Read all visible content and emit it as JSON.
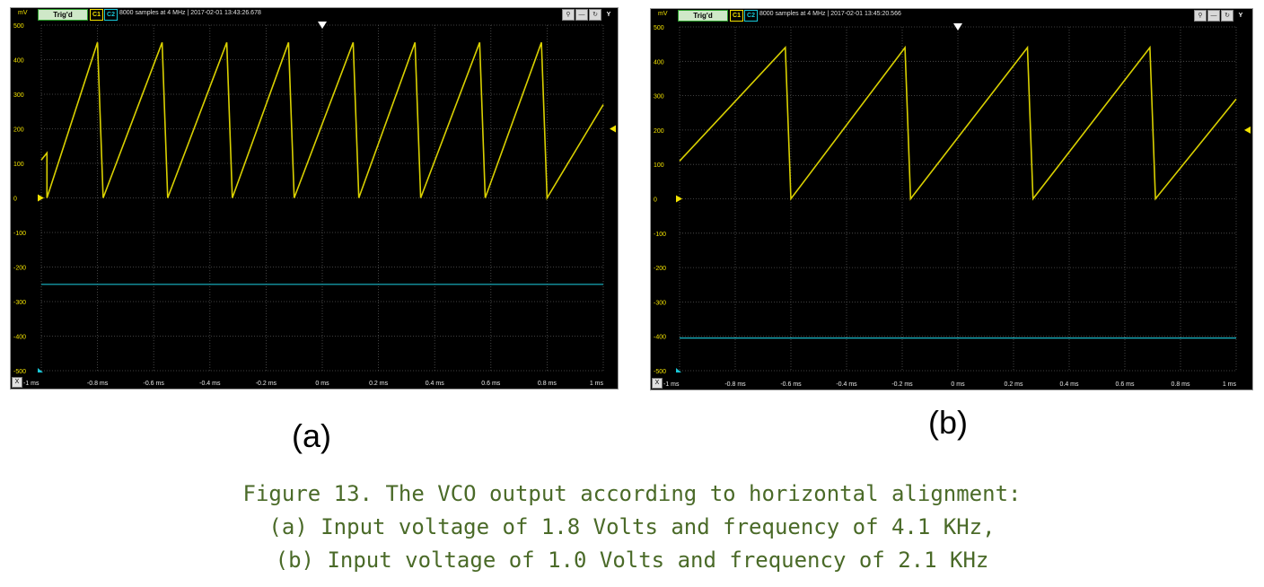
{
  "panels": [
    {
      "id": "a",
      "toolbar": {
        "unit": "mV",
        "trig_label": "Trig'd",
        "ch1": "C1",
        "ch2": "C2",
        "info": "8000 samples at 4 MHz | 2017-02-01 13:43:26.678",
        "x_button": "X"
      },
      "label": "(a)"
    },
    {
      "id": "b",
      "toolbar": {
        "unit": "mV",
        "trig_label": "Trig'd",
        "ch1": "C1",
        "ch2": "C2",
        "info": "8000 samples at 4 MHz | 2017-02-01 13:45:20.566",
        "x_button": "X"
      },
      "label": "(b)"
    }
  ],
  "chart_data": [
    {
      "type": "line",
      "xlabel": "",
      "ylabel": "mV",
      "xlim": [
        -1,
        1
      ],
      "ylim": [
        -500,
        500
      ],
      "grid": true,
      "y_ticks": [
        "500",
        "400",
        "300",
        "200",
        "100",
        "0",
        "-100",
        "-200",
        "-300",
        "-400",
        "-500"
      ],
      "x_ticks": [
        "-1 ms",
        "-0.8 ms",
        "-0.6 ms",
        "-0.4 ms",
        "-0.2 ms",
        "0 ms",
        "0.2 ms",
        "0.4 ms",
        "0.6 ms",
        "0.8 ms",
        "1 ms"
      ],
      "series": [
        {
          "color": "#d9d000",
          "x": [
            -1.0,
            -0.98,
            -0.98,
            -0.8,
            -0.78,
            -0.57,
            -0.55,
            -0.34,
            -0.32,
            -0.12,
            -0.1,
            0.11,
            0.13,
            0.33,
            0.35,
            0.56,
            0.58,
            0.78,
            0.8,
            1.0
          ],
          "y": [
            110,
            130,
            0,
            450,
            0,
            450,
            0,
            450,
            0,
            450,
            0,
            450,
            0,
            450,
            0,
            450,
            0,
            450,
            0,
            270
          ]
        },
        {
          "color": "#19b8c8",
          "x": [
            -1.0,
            1.0
          ],
          "y": [
            -250,
            -250
          ]
        }
      ]
    },
    {
      "type": "line",
      "xlabel": "",
      "ylabel": "mV",
      "xlim": [
        -1,
        1
      ],
      "ylim": [
        -500,
        500
      ],
      "grid": true,
      "y_ticks": [
        "500",
        "400",
        "300",
        "200",
        "100",
        "0",
        "-100",
        "-200",
        "-300",
        "-400",
        "-500"
      ],
      "x_ticks": [
        "-1 ms",
        "-0.8 ms",
        "-0.6 ms",
        "-0.4 ms",
        "-0.2 ms",
        "0 ms",
        "0.2 ms",
        "0.4 ms",
        "0.6 ms",
        "0.8 ms",
        "1 ms"
      ],
      "series": [
        {
          "color": "#d9d000",
          "x": [
            -1.0,
            -0.62,
            -0.6,
            -0.19,
            -0.17,
            0.25,
            0.27,
            0.69,
            0.71,
            1.0
          ],
          "y": [
            110,
            440,
            0,
            440,
            0,
            440,
            0,
            440,
            0,
            290
          ]
        },
        {
          "color": "#19b8c8",
          "x": [
            -1.0,
            1.0
          ],
          "y": [
            -405,
            -405
          ]
        }
      ]
    }
  ],
  "caption": {
    "line1": "Figure 13. The VCO output according to horizontal alignment:",
    "line2": "(a) Input voltage of 1.8 Volts and frequency of 4.1 KHz,",
    "line3": "(b) Input voltage of 1.0 Volts and frequency of 2.1 KHz"
  }
}
